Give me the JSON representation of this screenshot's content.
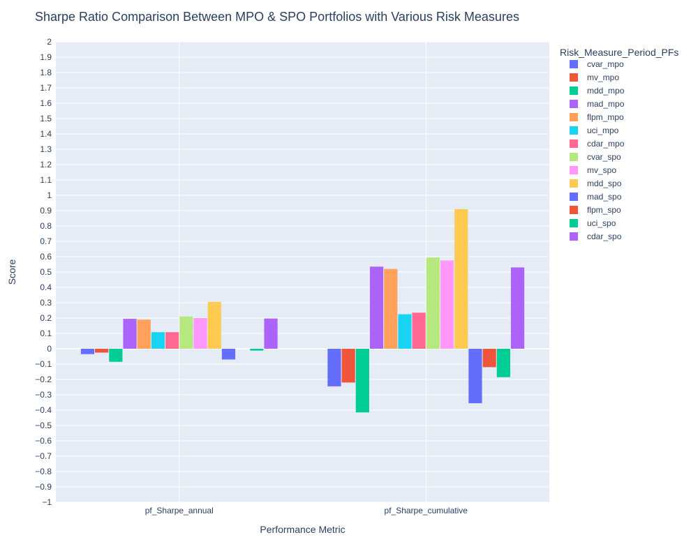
{
  "chart_data": {
    "type": "bar",
    "title": "Sharpe Ratio Comparison Between MPO & SPO Portfolios with Various Risk Measures",
    "xlabel": "Performance Metric",
    "ylabel": "Score",
    "legend_title": "Risk_Measure_Period_PFs",
    "legend_position": "right",
    "grid": true,
    "ylim": [
      -1,
      2
    ],
    "ytick_step": 0.1,
    "yticks": [
      "−1",
      "−0.9",
      "−0.8",
      "−0.7",
      "−0.6",
      "−0.5",
      "−0.4",
      "−0.3",
      "−0.2",
      "−0.1",
      "0",
      "0.1",
      "0.2",
      "0.3",
      "0.4",
      "0.5",
      "0.6",
      "0.7",
      "0.8",
      "0.9",
      "1",
      "1.1",
      "1.2",
      "1.3",
      "1.4",
      "1.5",
      "1.6",
      "1.7",
      "1.8",
      "1.9",
      "2"
    ],
    "categories": [
      "pf_Sharpe_annual",
      "pf_Sharpe_cumulative"
    ],
    "series": [
      {
        "name": "cvar_mpo",
        "color": "#636efa",
        "values": [
          -0.035,
          -0.245
        ]
      },
      {
        "name": "mv_mpo",
        "color": "#ef553b",
        "values": [
          -0.025,
          -0.22
        ]
      },
      {
        "name": "mdd_mpo",
        "color": "#00cc96",
        "values": [
          -0.085,
          -0.415
        ]
      },
      {
        "name": "mad_mpo",
        "color": "#ab63fa",
        "values": [
          0.195,
          0.535
        ]
      },
      {
        "name": "flpm_mpo",
        "color": "#ffa15a",
        "values": [
          0.19,
          0.52
        ]
      },
      {
        "name": "uci_mpo",
        "color": "#19d3f3",
        "values": [
          0.108,
          0.225
        ]
      },
      {
        "name": "cdar_mpo",
        "color": "#ff6692",
        "values": [
          0.108,
          0.235
        ]
      },
      {
        "name": "cvar_spo",
        "color": "#b6e880",
        "values": [
          0.21,
          0.595
        ]
      },
      {
        "name": "mv_spo",
        "color": "#ff97ff",
        "values": [
          0.2,
          0.575
        ]
      },
      {
        "name": "mdd_spo",
        "color": "#fecb52",
        "values": [
          0.305,
          0.91
        ]
      },
      {
        "name": "mad_spo",
        "color": "#636efa",
        "values": [
          -0.07,
          -0.355
        ]
      },
      {
        "name": "flpm_spo",
        "color": "#ef553b",
        "values": [
          0.0,
          -0.12
        ]
      },
      {
        "name": "uci_spo",
        "color": "#00cc96",
        "values": [
          -0.012,
          -0.185
        ]
      },
      {
        "name": "cdar_spo",
        "color": "#ab63fa",
        "values": [
          0.197,
          0.53
        ]
      }
    ]
  }
}
